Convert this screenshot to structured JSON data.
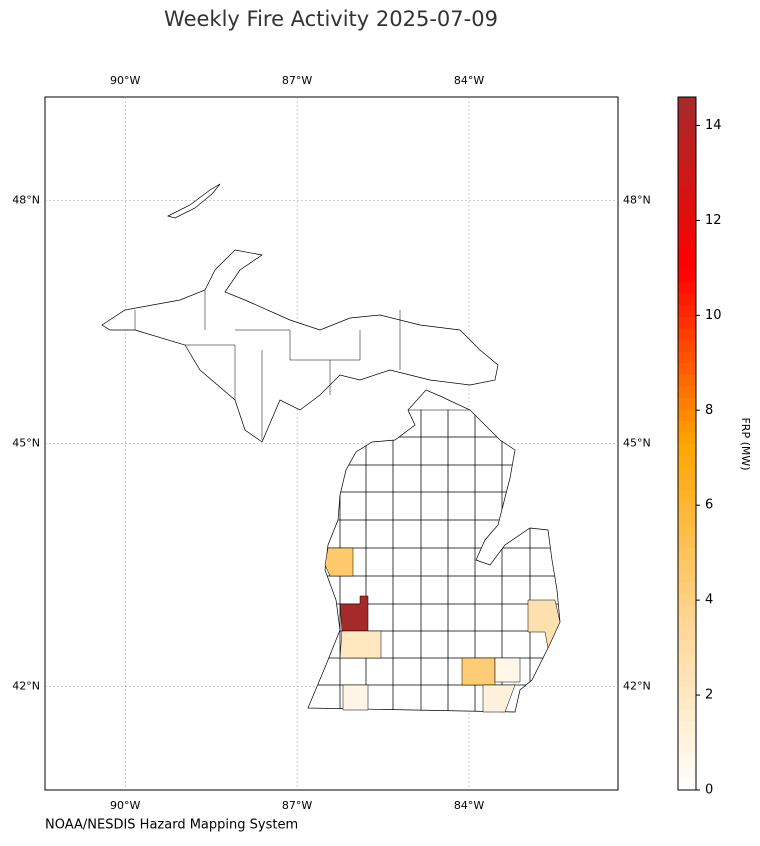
{
  "chart_data": {
    "type": "choropleth",
    "title": "Weekly Fire Activity 2025-07-09",
    "source": "NOAA/NESDIS Hazard Mapping System",
    "xlim": [
      -91.4,
      -81.4
    ],
    "ylim": [
      40.72,
      49.28
    ],
    "xticks": [
      {
        "value": -90,
        "label": "90°W"
      },
      {
        "value": -87,
        "label": "87°W"
      },
      {
        "value": -84,
        "label": "84°W"
      }
    ],
    "yticks": [
      {
        "value": 48,
        "label": "48°N"
      },
      {
        "value": 45,
        "label": "45°N"
      },
      {
        "value": 42,
        "label": "42°N"
      }
    ],
    "grid": true,
    "colorbar": {
      "label": "FRP (MW)",
      "lim": [
        0,
        14.6
      ],
      "ticks": [
        0,
        2,
        4,
        6,
        8,
        10,
        12,
        14
      ],
      "colors": [
        "#ffffff",
        "#ffd590",
        "#ffa500",
        "#ff0000",
        "#a52a2a"
      ]
    },
    "values": [
      14.6,
      4.5,
      4.3,
      2.6,
      2.1,
      0.7,
      0.8,
      1.2
    ]
  }
}
